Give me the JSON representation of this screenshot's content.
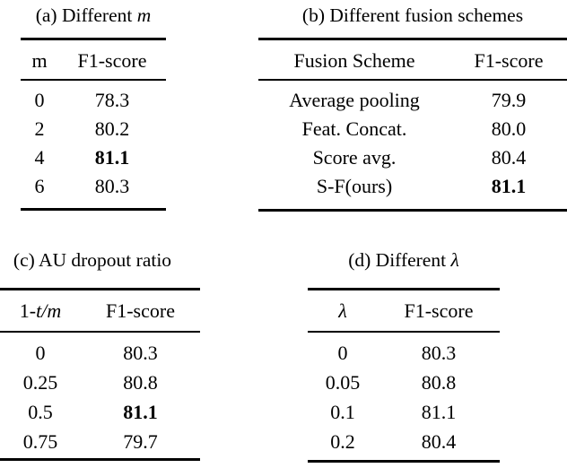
{
  "page": {
    "background": "#ffffff",
    "text_color": "#000000"
  },
  "tables": [
    {
      "id": "a",
      "caption_prefix": "(a) Different ",
      "caption_math": "m",
      "col1_header": "m",
      "col1_header_math": "",
      "col2_header": "F1-score",
      "rows": [
        {
          "label": "0",
          "value": "78.3",
          "bold": false
        },
        {
          "label": "2",
          "value": "80.2",
          "bold": false
        },
        {
          "label": "4",
          "value": "81.1",
          "bold": true
        },
        {
          "label": "6",
          "value": "80.3",
          "bold": false
        }
      ]
    },
    {
      "id": "b",
      "caption_prefix": "(b) Different fusion schemes",
      "caption_math": "",
      "col1_header": "Fusion Scheme",
      "col1_header_math": "",
      "col2_header": "F1-score",
      "rows": [
        {
          "label": "Average pooling",
          "value": "79.9",
          "bold": false
        },
        {
          "label": "Feat. Concat.",
          "value": "80.0",
          "bold": false
        },
        {
          "label": "Score avg.",
          "value": "80.4",
          "bold": false
        },
        {
          "label": "S-F(ours)",
          "value": "81.1",
          "bold": true
        }
      ]
    },
    {
      "id": "c",
      "caption_prefix": "(c) AU dropout ratio",
      "caption_math": "",
      "col1_header": "1-",
      "col1_header_math": "t/m",
      "col2_header": "F1-score",
      "rows": [
        {
          "label": "0",
          "value": "80.3",
          "bold": false
        },
        {
          "label": "0.25",
          "value": "80.8",
          "bold": false
        },
        {
          "label": "0.5",
          "value": "81.1",
          "bold": true
        },
        {
          "label": "0.75",
          "value": "79.7",
          "bold": false
        }
      ]
    },
    {
      "id": "d",
      "caption_prefix": "(d) Different ",
      "caption_math": "λ",
      "col1_header": "",
      "col1_header_math": "λ",
      "col2_header": "F1-score",
      "rows": [
        {
          "label": "0",
          "value": "80.3",
          "bold": false
        },
        {
          "label": "0.05",
          "value": "80.8",
          "bold": false
        },
        {
          "label": "0.1",
          "value": "81.1",
          "bold": false
        },
        {
          "label": "0.2",
          "value": "80.4",
          "bold": false
        }
      ]
    }
  ]
}
